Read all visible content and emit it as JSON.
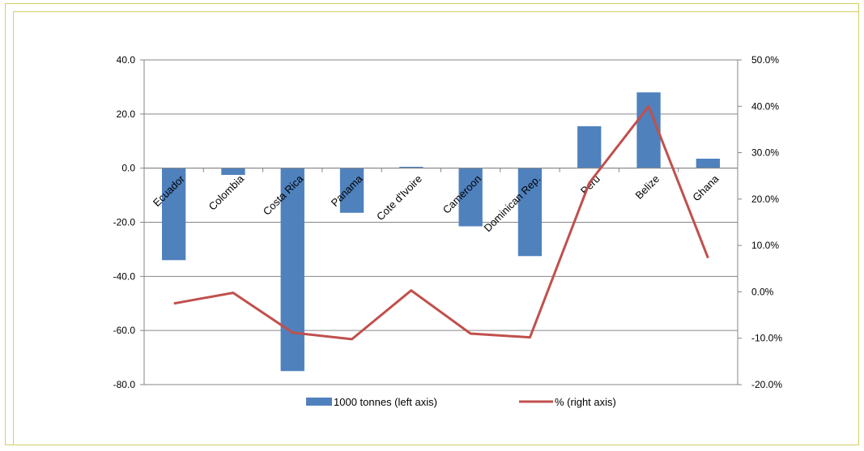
{
  "chart_data": {
    "type": "bar",
    "title": "",
    "categories": [
      "Ecuador",
      "Colombia",
      "Costa Rica",
      "Panama",
      "Cote d'Ivoire",
      "Cameroon",
      "Dominican Rep.",
      "Peru",
      "Belize",
      "Ghana"
    ],
    "series": [
      {
        "name": "1000 tonnes (left axis)",
        "type": "bar",
        "axis": "left",
        "color": "#4f81bd",
        "values": [
          -34.0,
          -2.5,
          -75.0,
          -16.5,
          0.5,
          -21.5,
          -32.5,
          15.5,
          28.0,
          3.5
        ]
      },
      {
        "name": "% (right axis)",
        "type": "line",
        "axis": "right",
        "color": "#c0504d",
        "values": [
          -2.5,
          -0.2,
          -8.8,
          -10.2,
          0.3,
          -9.0,
          -9.8,
          23.5,
          40.0,
          7.3
        ]
      }
    ],
    "y_left": {
      "ylim": [
        -80,
        40
      ],
      "ticks": [
        40,
        20,
        0,
        -20,
        -40,
        -60,
        -80
      ],
      "tick_labels": [
        "40.0",
        "20.0",
        "0.0",
        "-20.0",
        "-40.0",
        "-60.0",
        "-80.0"
      ]
    },
    "y_right": {
      "ylim": [
        -20,
        50
      ],
      "ticks": [
        50,
        40,
        30,
        20,
        10,
        0,
        -10,
        -20
      ],
      "tick_labels": [
        "50.0%",
        "40.0%",
        "30.0%",
        "20.0%",
        "10.0%",
        "0.0%",
        "-10.0%",
        "-20.0%"
      ]
    },
    "grid": true,
    "legend": "bottom"
  }
}
